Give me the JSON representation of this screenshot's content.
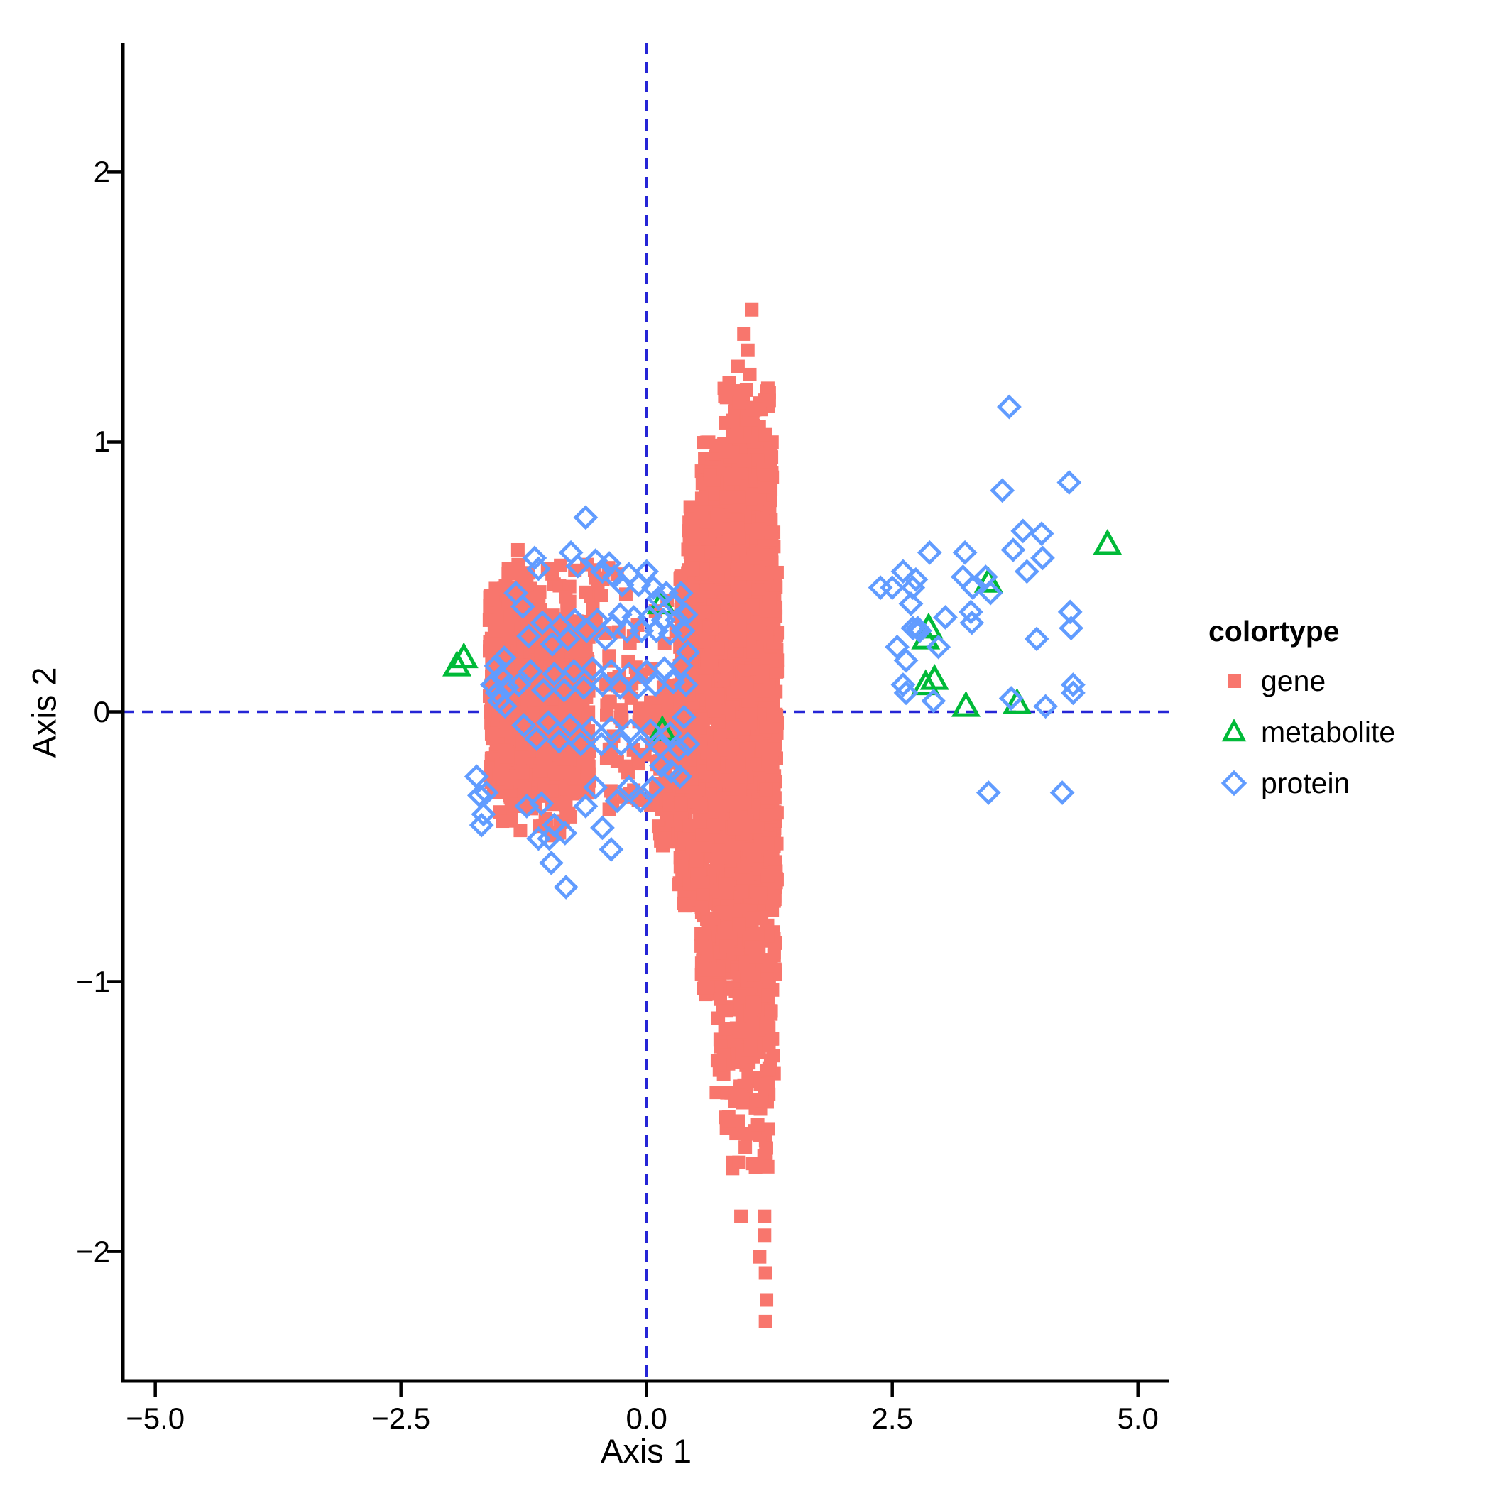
{
  "chart_data": {
    "type": "scatter",
    "title": "",
    "xlabel": "Axis 1",
    "ylabel": "Axis 2",
    "xlim": [
      -5.33,
      5.32
    ],
    "ylim": [
      -2.48,
      2.48
    ],
    "grid": "off",
    "x_ticks": {
      "values": [
        -5.0,
        -2.5,
        0.0,
        2.5,
        5.0
      ],
      "labels": [
        "−5.0",
        "−2.5",
        "0.0",
        "2.5",
        "5.0"
      ]
    },
    "y_ticks": {
      "values": [
        2,
        1,
        0,
        -1,
        -2
      ],
      "labels": [
        "2",
        "1",
        "0",
        "−1",
        "−2"
      ]
    },
    "reference_lines": {
      "vertical_x": 0,
      "horizontal_y": 0,
      "style": "dashed",
      "color": "#2525D6"
    },
    "legend": {
      "title": "colortype",
      "position": "right",
      "entries": [
        {
          "label": "gene",
          "marker": "filled-square",
          "color": "#F8766D"
        },
        {
          "label": "metabolite",
          "marker": "open-triangle",
          "color": "#00BA38"
        },
        {
          "label": "protein",
          "marker": "open-diamond",
          "color": "#619CFF"
        }
      ]
    },
    "random_seed": 42,
    "series": [
      {
        "name": "gene",
        "marker": "filled-square",
        "color": "#F8766D",
        "marker_px": 19,
        "clusters": [
          {
            "x": [
              -1.6,
              -1.08
            ],
            "y": [
              -0.3,
              0.46
            ],
            "n": 520
          },
          {
            "x": [
              -1.28,
              -0.58
            ],
            "y": [
              -0.32,
              0.34
            ],
            "n": 470
          },
          {
            "x": [
              -1.45,
              -0.4
            ],
            "y": [
              0.28,
              0.55
            ],
            "n": 45
          },
          {
            "x": [
              -1.55,
              -0.7
            ],
            "y": [
              -0.46,
              -0.28
            ],
            "n": 36
          },
          {
            "x": [
              -0.42,
              0.06
            ],
            "y": [
              -0.38,
              0.22
            ],
            "n": 55
          },
          {
            "x": [
              0.08,
              0.38
            ],
            "y": [
              -0.5,
              0.1
            ],
            "n": 110
          },
          {
            "x": [
              0.33,
              1.33
            ],
            "y": [
              -0.72,
              0.52
            ],
            "n": 1500
          },
          {
            "x": [
              0.42,
              1.3
            ],
            "y": [
              0.5,
              0.76
            ],
            "n": 280
          },
          {
            "x": [
              0.55,
              1.28
            ],
            "y": [
              0.76,
              1.0
            ],
            "n": 190
          },
          {
            "x": [
              0.78,
              1.26
            ],
            "y": [
              1.0,
              1.2
            ],
            "n": 60
          },
          {
            "x": [
              0.55,
              1.32
            ],
            "y": [
              -1.05,
              -0.72
            ],
            "n": 230
          },
          {
            "x": [
              0.7,
              1.3
            ],
            "y": [
              -1.42,
              -1.05
            ],
            "n": 95
          },
          {
            "x": [
              0.8,
              1.26
            ],
            "y": [
              -1.7,
              -1.42
            ],
            "n": 30
          },
          {
            "x": [
              -0.55,
              0.3
            ],
            "y": [
              0.25,
              0.58
            ],
            "n": 14
          }
        ],
        "points": [
          [
            1.07,
            1.49
          ],
          [
            0.99,
            1.4
          ],
          [
            1.03,
            1.34
          ],
          [
            0.93,
            1.28
          ],
          [
            1.05,
            1.25
          ],
          [
            0.84,
            1.22
          ],
          [
            0.96,
            1.18
          ],
          [
            1.1,
            1.12
          ],
          [
            0.88,
            1.08
          ],
          [
            -1.31,
            0.6
          ],
          [
            -1.22,
            0.47
          ],
          [
            -0.3,
            0.51
          ],
          [
            1.17,
            -1.44
          ],
          [
            1.13,
            -1.53
          ],
          [
            0.94,
            -1.67
          ],
          [
            1.14,
            -1.68
          ],
          [
            0.96,
            -1.87
          ],
          [
            1.2,
            -1.87
          ],
          [
            1.2,
            -1.94
          ],
          [
            1.15,
            -2.02
          ],
          [
            1.21,
            -2.08
          ],
          [
            1.22,
            -2.18
          ],
          [
            1.21,
            -2.26
          ]
        ]
      },
      {
        "name": "metabolite",
        "marker": "open-triangle",
        "color": "#00BA38",
        "marker_px": 29,
        "points": [
          [
            -1.93,
            0.17
          ],
          [
            -1.86,
            0.2
          ],
          [
            2.87,
            0.31
          ],
          [
            2.84,
            0.27
          ],
          [
            2.84,
            0.1
          ],
          [
            2.93,
            0.12
          ],
          [
            3.25,
            0.02
          ],
          [
            3.48,
            0.48
          ],
          [
            3.77,
            0.03
          ],
          [
            4.69,
            0.62
          ],
          [
            0.15,
            0.4
          ],
          [
            0.16,
            -0.07
          ]
        ]
      },
      {
        "name": "protein",
        "marker": "open-diamond",
        "color": "#619CFF",
        "marker_px": 28,
        "points": [
          [
            -1.57,
            0.1
          ],
          [
            -1.53,
            0.17
          ],
          [
            -1.5,
            0.04
          ],
          [
            -1.48,
            0.13
          ],
          [
            -1.45,
            0.2
          ],
          [
            -1.44,
            0.02
          ],
          [
            -1.52,
            0.07
          ],
          [
            -1.42,
            0.09
          ],
          [
            -1.73,
            -0.24
          ],
          [
            -1.7,
            -0.31
          ],
          [
            -1.66,
            -0.38
          ],
          [
            -1.63,
            -0.3
          ],
          [
            -1.68,
            -0.42
          ],
          [
            -0.62,
            0.72
          ],
          [
            -1.14,
            0.57
          ],
          [
            -1.1,
            0.53
          ],
          [
            -0.77,
            0.59
          ],
          [
            -0.7,
            0.54
          ],
          [
            -0.52,
            0.56
          ],
          [
            -0.45,
            0.52
          ],
          [
            -0.38,
            0.55
          ],
          [
            -0.33,
            0.5
          ],
          [
            -0.25,
            0.47
          ],
          [
            -0.18,
            0.51
          ],
          [
            -0.08,
            0.47
          ],
          [
            0.0,
            0.52
          ],
          [
            0.07,
            0.46
          ],
          [
            -1.33,
            0.44
          ],
          [
            -1.26,
            0.39
          ],
          [
            -1.2,
            0.28
          ],
          [
            -1.06,
            0.33
          ],
          [
            -0.96,
            0.25
          ],
          [
            -0.88,
            0.32
          ],
          [
            -0.8,
            0.27
          ],
          [
            -0.73,
            0.34
          ],
          [
            -0.61,
            0.3
          ],
          [
            -0.5,
            0.34
          ],
          [
            -0.42,
            0.27
          ],
          [
            -0.34,
            0.32
          ],
          [
            -0.27,
            0.36
          ],
          [
            -0.2,
            0.3
          ],
          [
            -0.13,
            0.35
          ],
          [
            -0.05,
            0.3
          ],
          [
            0.03,
            0.35
          ],
          [
            0.1,
            0.3
          ],
          [
            0.17,
            0.34
          ],
          [
            0.24,
            0.29
          ],
          [
            0.31,
            0.34
          ],
          [
            0.37,
            0.3
          ],
          [
            -1.3,
            0.1
          ],
          [
            -1.18,
            0.15
          ],
          [
            -1.05,
            0.08
          ],
          [
            -0.94,
            0.14
          ],
          [
            -0.84,
            0.08
          ],
          [
            -0.74,
            0.15
          ],
          [
            -0.64,
            0.09
          ],
          [
            -0.55,
            0.16
          ],
          [
            -0.45,
            0.1
          ],
          [
            -0.36,
            0.15
          ],
          [
            -0.27,
            0.09
          ],
          [
            -0.18,
            0.14
          ],
          [
            -0.09,
            0.09
          ],
          [
            0.0,
            0.15
          ],
          [
            0.09,
            0.1
          ],
          [
            0.18,
            0.16
          ],
          [
            0.27,
            0.11
          ],
          [
            0.35,
            0.17
          ],
          [
            -1.25,
            -0.05
          ],
          [
            -1.12,
            -0.1
          ],
          [
            -1.0,
            -0.04
          ],
          [
            -0.89,
            -0.11
          ],
          [
            -0.78,
            -0.05
          ],
          [
            -0.67,
            -0.12
          ],
          [
            -0.56,
            -0.06
          ],
          [
            -0.46,
            -0.12
          ],
          [
            -0.36,
            -0.06
          ],
          [
            -0.26,
            -0.12
          ],
          [
            -0.16,
            -0.07
          ],
          [
            -0.06,
            -0.13
          ],
          [
            0.04,
            -0.07
          ],
          [
            0.14,
            -0.13
          ],
          [
            0.24,
            -0.08
          ],
          [
            0.33,
            -0.14
          ],
          [
            0.12,
            0.42
          ],
          [
            0.2,
            0.44
          ],
          [
            0.28,
            0.4
          ],
          [
            0.35,
            0.44
          ],
          [
            0.4,
            0.36
          ],
          [
            0.42,
            0.22
          ],
          [
            0.4,
            0.1
          ],
          [
            0.38,
            -0.02
          ],
          [
            0.42,
            -0.12
          ],
          [
            0.15,
            -0.2
          ],
          [
            0.25,
            -0.22
          ],
          [
            0.34,
            -0.24
          ],
          [
            -1.22,
            -0.35
          ],
          [
            -1.07,
            -0.34
          ],
          [
            -1.1,
            -0.47
          ],
          [
            -0.99,
            -0.47
          ],
          [
            -0.94,
            -0.42
          ],
          [
            -0.83,
            -0.45
          ],
          [
            -0.62,
            -0.35
          ],
          [
            -0.45,
            -0.43
          ],
          [
            -0.36,
            -0.51
          ],
          [
            -0.97,
            -0.56
          ],
          [
            -0.82,
            -0.65
          ],
          [
            -0.52,
            -0.28
          ],
          [
            -0.3,
            -0.33
          ],
          [
            -0.18,
            -0.28
          ],
          [
            -0.06,
            -0.33
          ],
          [
            0.06,
            -0.28
          ],
          [
            3.69,
            1.13
          ],
          [
            3.62,
            0.82
          ],
          [
            4.3,
            0.85
          ],
          [
            3.83,
            0.67
          ],
          [
            4.02,
            0.66
          ],
          [
            3.73,
            0.6
          ],
          [
            4.03,
            0.57
          ],
          [
            3.87,
            0.52
          ],
          [
            2.88,
            0.59
          ],
          [
            3.24,
            0.59
          ],
          [
            2.61,
            0.52
          ],
          [
            2.74,
            0.49
          ],
          [
            2.38,
            0.46
          ],
          [
            2.5,
            0.46
          ],
          [
            2.71,
            0.46
          ],
          [
            3.22,
            0.5
          ],
          [
            3.45,
            0.5
          ],
          [
            3.32,
            0.46
          ],
          [
            3.5,
            0.44
          ],
          [
            2.69,
            0.4
          ],
          [
            3.3,
            0.37
          ],
          [
            3.04,
            0.35
          ],
          [
            3.31,
            0.33
          ],
          [
            2.78,
            0.3
          ],
          [
            4.31,
            0.37
          ],
          [
            4.32,
            0.31
          ],
          [
            3.97,
            0.27
          ],
          [
            2.97,
            0.24
          ],
          [
            2.71,
            0.31
          ],
          [
            2.76,
            0.31
          ],
          [
            2.55,
            0.24
          ],
          [
            2.64,
            0.19
          ],
          [
            2.61,
            0.1
          ],
          [
            2.64,
            0.07
          ],
          [
            2.92,
            0.04
          ],
          [
            3.71,
            0.05
          ],
          [
            4.06,
            0.02
          ],
          [
            4.34,
            0.1
          ],
          [
            4.34,
            0.07
          ],
          [
            3.48,
            -0.3
          ],
          [
            4.23,
            -0.3
          ]
        ]
      }
    ]
  }
}
